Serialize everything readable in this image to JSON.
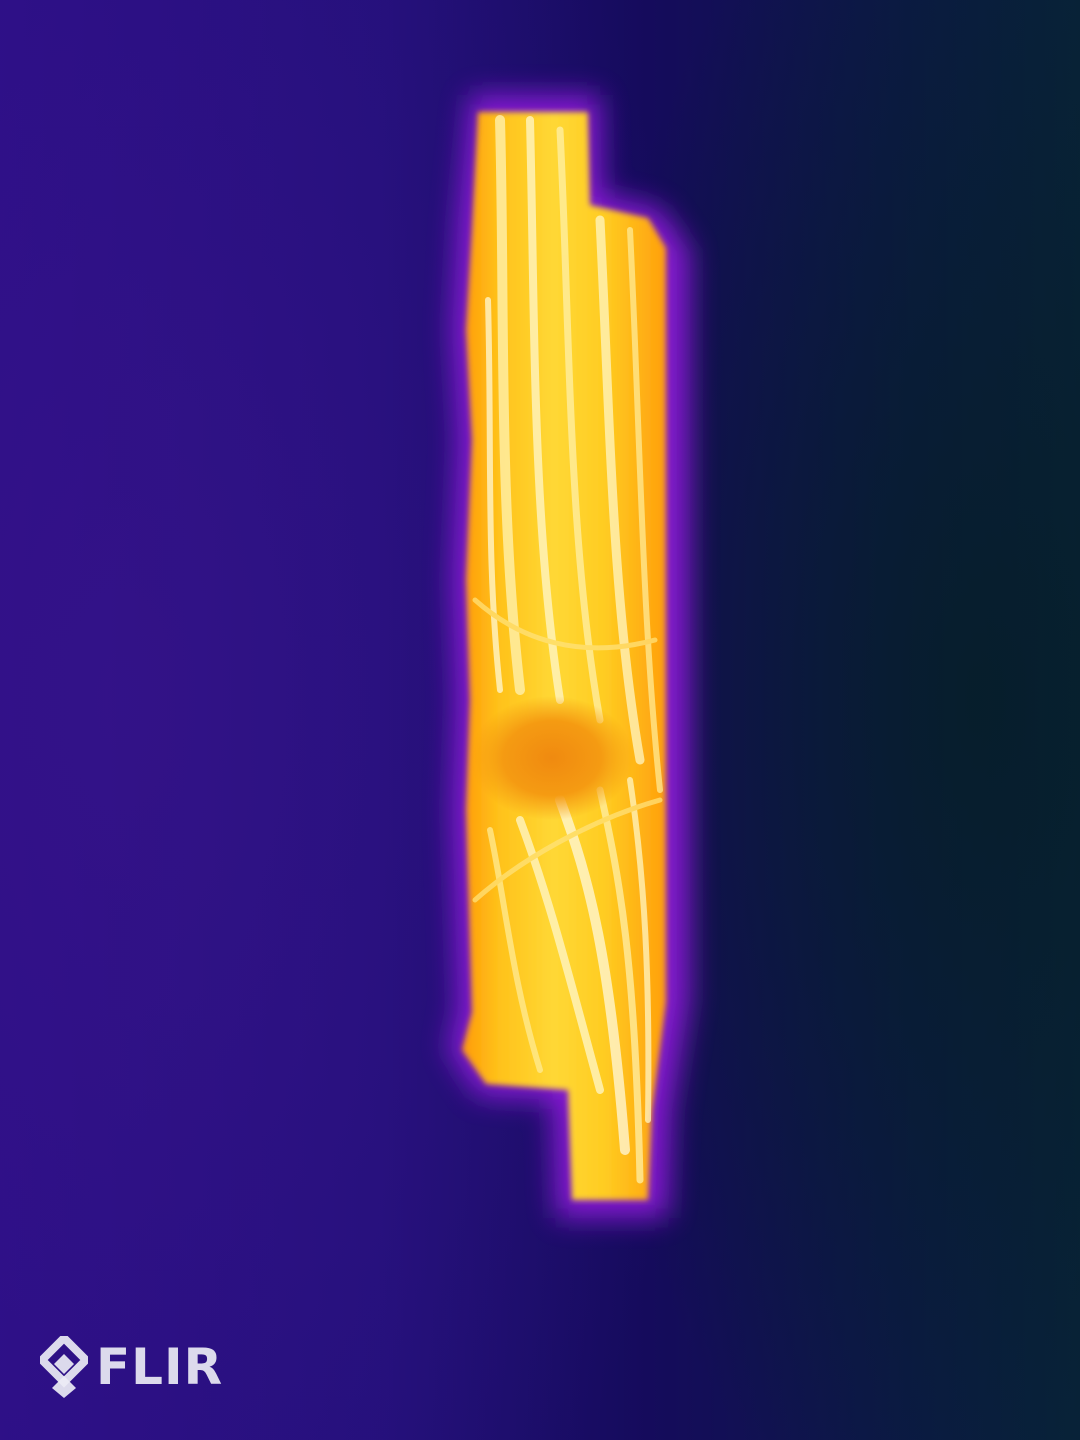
{
  "image": {
    "subject": "wooden-board-thermal-scan",
    "palette": {
      "background_cold": "#0b1a45",
      "background_mid": "#22107a",
      "edge_glow": "#a020f0",
      "warm": "#ff8c00",
      "hot": "#ffd21a",
      "hottest": "#fff6c8"
    }
  },
  "logo": {
    "text": "FLIR",
    "icon": "flir-diamond-icon"
  }
}
